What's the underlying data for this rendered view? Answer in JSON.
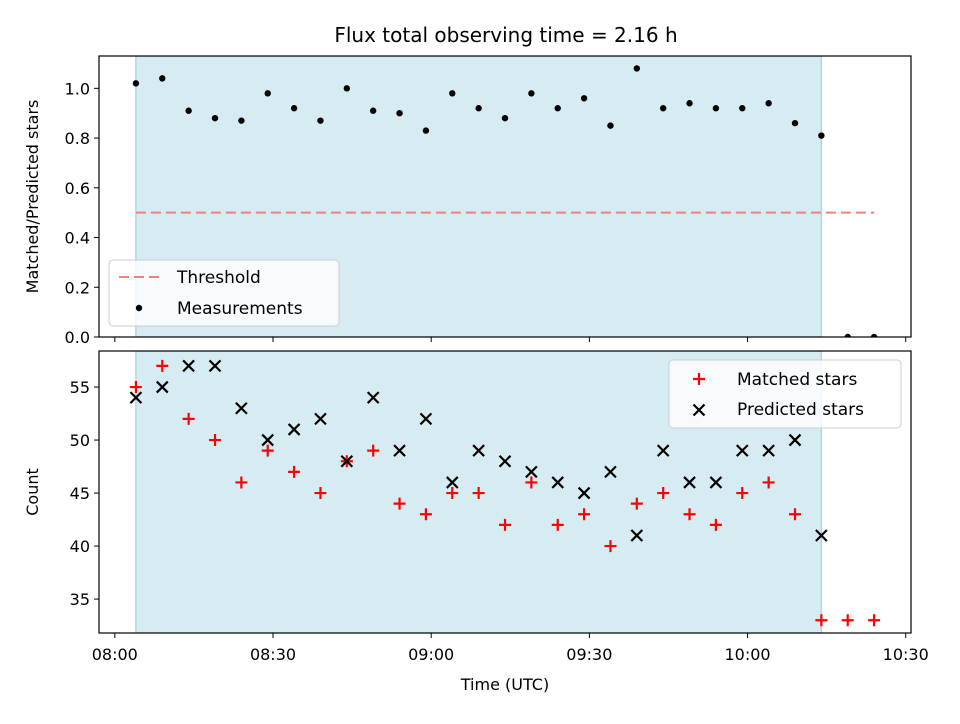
{
  "title": "Flux total observing time = 2.16 h",
  "colors": {
    "band": "#add8e6",
    "threshold": "#f08080",
    "measurement": "#000000",
    "matched": "#ff0000",
    "predicted": "#000000"
  },
  "chart_data": [
    {
      "type": "scatter",
      "panel": "top",
      "ylabel": "Matched/Predicted stars",
      "xlabel": "",
      "ylim": [
        0,
        1.13
      ],
      "yticks": [
        "0.0",
        "0.2",
        "0.4",
        "0.6",
        "0.8",
        "1.0"
      ],
      "ytick_values": [
        0,
        0.2,
        0.4,
        0.6,
        0.8,
        1.0
      ],
      "x_unit": "minutes after 08:00 UTC",
      "xlim": [
        -3,
        151
      ],
      "shaded_span_x": [
        4,
        134
      ],
      "legend": {
        "position": "lower-left",
        "entries": [
          "Threshold",
          "Measurements"
        ]
      },
      "series": [
        {
          "name": "Threshold",
          "kind": "dashed-line",
          "x": [
            4,
            144
          ],
          "y": [
            0.5,
            0.5
          ]
        },
        {
          "name": "Measurements",
          "kind": "dots",
          "x": [
            4,
            9,
            14,
            19,
            24,
            29,
            34,
            39,
            44,
            49,
            54,
            59,
            64,
            69,
            74,
            79,
            84,
            89,
            94,
            99,
            104,
            109,
            114,
            119,
            124,
            129,
            134,
            139,
            144
          ],
          "y": [
            1.02,
            1.04,
            0.91,
            0.88,
            0.87,
            0.98,
            0.92,
            0.87,
            1.0,
            0.91,
            0.9,
            0.83,
            0.98,
            0.92,
            0.88,
            0.98,
            0.92,
            0.96,
            0.85,
            1.08,
            0.92,
            0.94,
            0.92,
            0.92,
            0.94,
            0.86,
            0.81,
            0.0,
            0.0
          ]
        }
      ]
    },
    {
      "type": "scatter",
      "panel": "bottom",
      "ylabel": "Count",
      "xlabel": "Time (UTC)",
      "ylim": [
        31.8,
        58.4
      ],
      "yticks": [
        "35",
        "40",
        "45",
        "50",
        "55"
      ],
      "ytick_values": [
        35,
        40,
        45,
        50,
        55
      ],
      "x_unit": "minutes after 08:00 UTC",
      "xlim": [
        -3,
        151
      ],
      "xticks": [
        "08:00",
        "08:30",
        "09:00",
        "09:30",
        "10:00",
        "10:30"
      ],
      "xtick_values": [
        0,
        30,
        60,
        90,
        120,
        150
      ],
      "shaded_span_x": [
        4,
        134
      ],
      "legend": {
        "position": "upper-right",
        "entries": [
          "Matched stars",
          "Predicted stars"
        ]
      },
      "series": [
        {
          "name": "Matched stars",
          "kind": "plus",
          "x": [
            4,
            9,
            14,
            19,
            24,
            29,
            34,
            39,
            44,
            49,
            54,
            59,
            64,
            69,
            74,
            79,
            84,
            89,
            94,
            99,
            104,
            109,
            114,
            119,
            124,
            129,
            134,
            139,
            144
          ],
          "y": [
            55,
            57,
            52,
            50,
            46,
            49,
            47,
            45,
            48,
            49,
            44,
            43,
            45,
            45,
            42,
            46,
            42,
            43,
            40,
            44,
            45,
            43,
            42,
            45,
            46,
            43,
            33,
            33,
            33
          ]
        },
        {
          "name": "Predicted stars",
          "kind": "x",
          "x": [
            4,
            9,
            14,
            19,
            24,
            29,
            34,
            39,
            44,
            49,
            54,
            59,
            64,
            69,
            74,
            79,
            84,
            89,
            94,
            99,
            104,
            109,
            114,
            119,
            124,
            129,
            134
          ],
          "y": [
            54,
            55,
            57,
            57,
            53,
            50,
            51,
            52,
            48,
            54,
            49,
            52,
            46,
            49,
            48,
            47,
            46,
            45,
            47,
            41,
            49,
            46,
            46,
            49,
            49,
            50,
            41
          ]
        }
      ]
    }
  ]
}
